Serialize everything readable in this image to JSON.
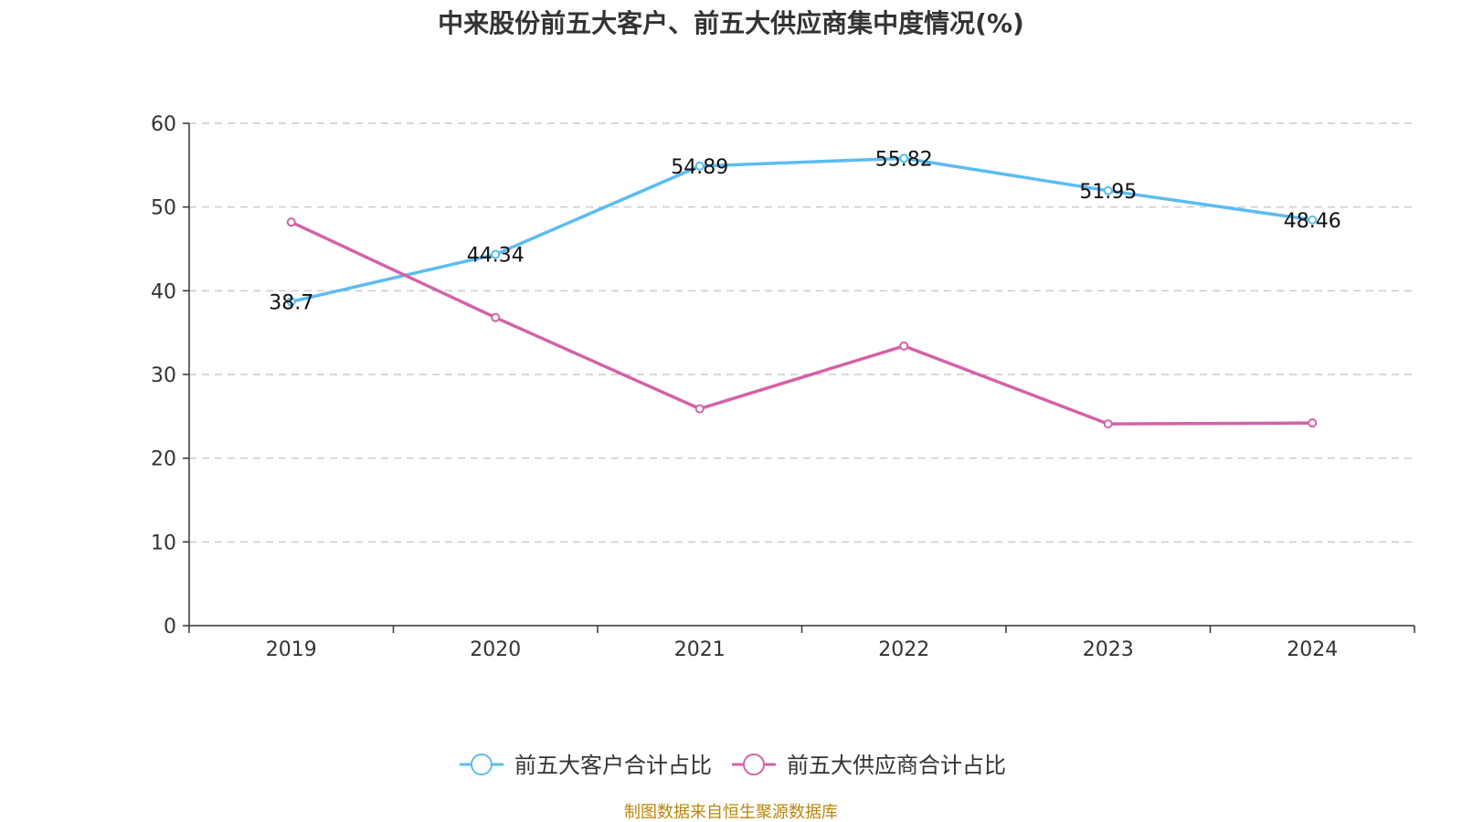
{
  "title": "中来股份前五大客户、前五大供应商集中度情况(%)",
  "source": "制图数据来自恒生聚源数据库",
  "chart_data": {
    "type": "line",
    "title": "中来股份前五大客户、前五大供应商集中度情况(%)",
    "categories": [
      "2019",
      "2020",
      "2021",
      "2022",
      "2023",
      "2024"
    ],
    "ylim": [
      0,
      60
    ],
    "yticks": [
      0,
      10,
      20,
      30,
      40,
      50,
      60
    ],
    "grid": "horizontal-dashed",
    "legend_position": "bottom",
    "series": [
      {
        "name": "前五大客户合计占比",
        "color": "#5bbcf0",
        "values": [
          38.7,
          44.34,
          54.89,
          55.82,
          51.95,
          48.46
        ],
        "labels": [
          "38.7",
          "44.34",
          "54.89",
          "55.82",
          "51.95",
          "48.46"
        ],
        "show_labels": true
      },
      {
        "name": "前五大供应商合计占比",
        "color": "#d462a8",
        "values": [
          48.2,
          36.8,
          25.9,
          33.4,
          24.1,
          24.2
        ],
        "show_labels": false
      }
    ]
  }
}
